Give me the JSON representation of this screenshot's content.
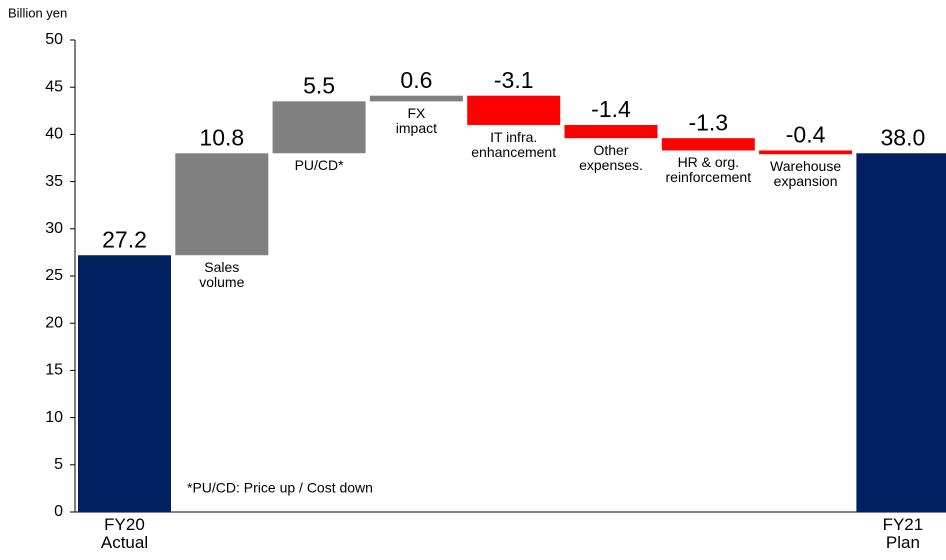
{
  "chart_data": {
    "type": "waterfall",
    "unit_label": "Billion yen",
    "footnote": "*PU/CD: Price up / Cost down",
    "categories": [
      "FY20\nActual",
      "Sales\nvolume",
      "PU/CD*",
      "FX\nimpact",
      "IT infra.\nenhancement",
      "Other\nexpenses.",
      "HR & org.\nreinforcement",
      "Warehouse\nexpansion",
      "FY21\nPlan"
    ],
    "values": [
      27.2,
      10.8,
      5.5,
      0.6,
      -3.1,
      -1.4,
      -1.3,
      -0.4,
      38.0
    ],
    "value_labels": [
      "27.2",
      "10.8",
      "5.5",
      "0.6",
      "-3.1",
      "-1.4",
      "-1.3",
      "-0.4",
      "38.0"
    ],
    "bar_kinds": [
      "total",
      "increase",
      "increase",
      "increase",
      "decrease",
      "decrease",
      "decrease",
      "decrease",
      "total"
    ],
    "colors": {
      "total": "#002060",
      "increase": "#808080",
      "decrease": "#ff0000"
    },
    "ylim": [
      0,
      50
    ],
    "yticks": [
      0,
      5,
      10,
      15,
      20,
      25,
      30,
      35,
      40,
      45,
      50
    ],
    "grid": false
  }
}
